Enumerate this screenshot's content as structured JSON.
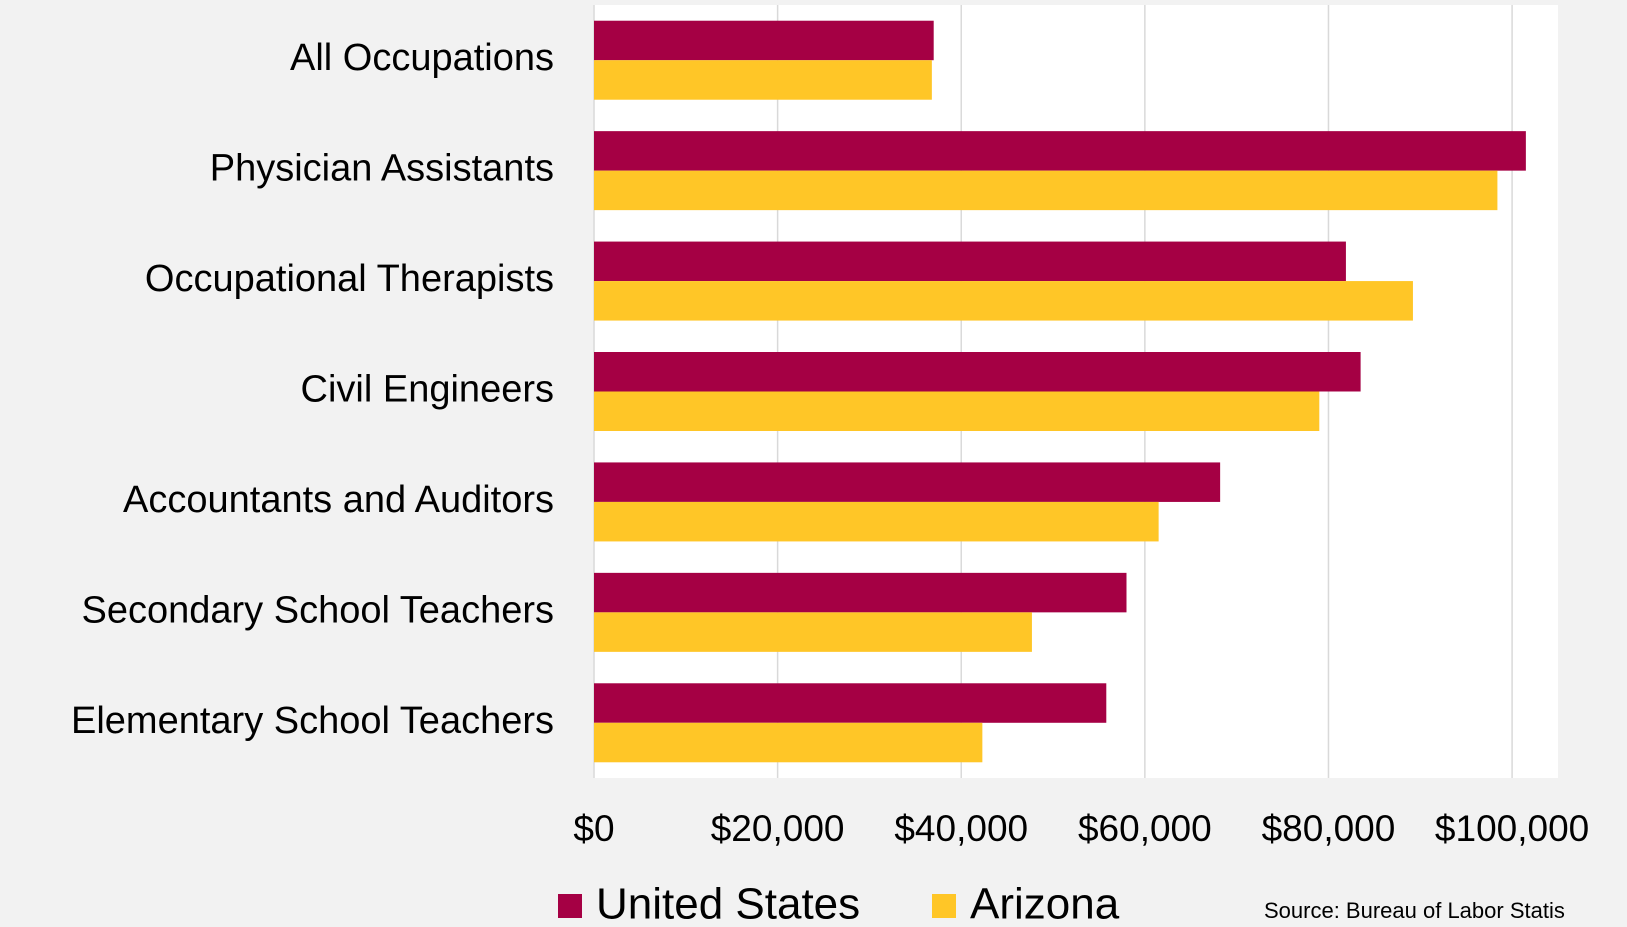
{
  "chart_data": {
    "type": "hbar",
    "categories": [
      "All Occupations",
      "Physician Assistants",
      "Occupational Therapists",
      "Civil Engineers",
      "Accountants and Auditors",
      "Secondary School Teachers",
      "Elementary School Teachers"
    ],
    "series": [
      {
        "name": "United States",
        "color": "#a50044",
        "values": [
          37000,
          101500,
          81900,
          83500,
          68200,
          58000,
          55800
        ]
      },
      {
        "name": "Arizona",
        "color": "#ffc627",
        "values": [
          36800,
          98400,
          89200,
          79000,
          61500,
          47700,
          42300
        ]
      }
    ],
    "xlim": [
      0,
      105000
    ],
    "xticks": [
      {
        "value": 0,
        "label": "$0"
      },
      {
        "value": 20000,
        "label": "$20,000"
      },
      {
        "value": 40000,
        "label": "$40,000"
      },
      {
        "value": 60000,
        "label": "$60,000"
      },
      {
        "value": 80000,
        "label": "$80,000"
      },
      {
        "value": 100000,
        "label": "$100,000"
      }
    ],
    "grid": true,
    "legend": "bottom",
    "source": "Source: Bureau of Labor Statis"
  }
}
